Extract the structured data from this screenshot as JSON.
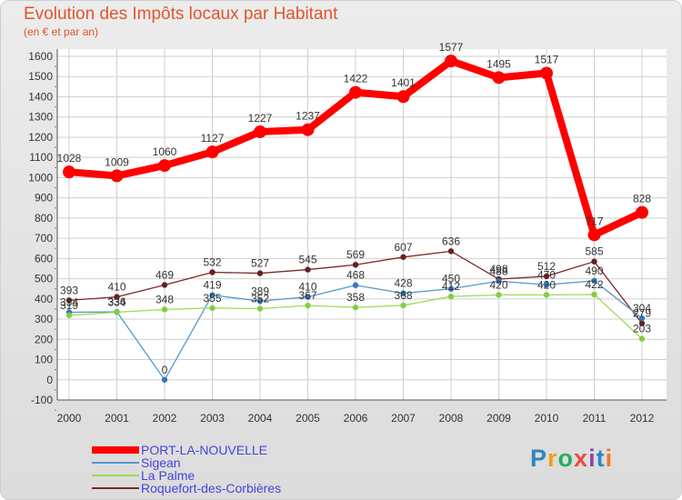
{
  "title": "Evolution des Impôts locaux par Habitant",
  "subtitle": "(en € et par an)",
  "logo": {
    "text": "Proxiti",
    "letter_colors": [
      "#2e86c1",
      "#f39c12",
      "#27ae60",
      "#e74c3c",
      "#8e44ad",
      "#2e86c1",
      "#e67e22"
    ]
  },
  "chart_data": {
    "type": "line",
    "title": "Evolution des Impôts locaux par Habitant",
    "subtitle": "(en € et par an)",
    "xlabel": "",
    "ylabel": "",
    "x": [
      "2000",
      "2001",
      "2002",
      "2003",
      "2004",
      "2005",
      "2006",
      "2007",
      "2008",
      "2009",
      "2010",
      "2011",
      "2012"
    ],
    "ylim": [
      -100,
      1600
    ],
    "yticks": [
      "-100",
      "0",
      "100",
      "200",
      "300",
      "400",
      "500",
      "600",
      "700",
      "800",
      "900",
      "1000",
      "1100",
      "1200",
      "1300",
      "1400",
      "1500",
      "1600"
    ],
    "grid": true,
    "legend_position": "bottom-left",
    "series": [
      {
        "name": "PORT-LA-NOUVELLE",
        "color": "#ff0000",
        "values": [
          1028,
          1009,
          1060,
          1127,
          1227,
          1237,
          1422,
          1401,
          1577,
          1495,
          1517,
          717,
          828
        ],
        "labels": [
          "1028",
          "1009",
          "1060",
          "1127",
          "1227",
          "1237",
          "1422",
          "1401",
          "1577",
          "1495",
          "1517",
          "717",
          "828"
        ]
      },
      {
        "name": "Sigean",
        "color": "#5599cc",
        "marker": "#3377bb",
        "values": [
          334,
          336,
          0,
          419,
          389,
          410,
          468,
          428,
          450,
          488,
          470,
          490,
          304
        ],
        "labels": [
          "334",
          "336",
          "0",
          "419",
          "389",
          "410",
          "468",
          "428",
          "450",
          "488",
          "470",
          "490",
          "304"
        ]
      },
      {
        "name": "La Palme",
        "color": "#99dd55",
        "marker": "#88cc44",
        "values": [
          319,
          334,
          348,
          355,
          352,
          367,
          358,
          368,
          412,
          420,
          420,
          422,
          203
        ],
        "labels": [
          "319",
          "334",
          "348",
          "355",
          "352",
          "367",
          "358",
          "368",
          "412",
          "420",
          "420",
          "422",
          "203"
        ]
      },
      {
        "name": "Roquefort-des-Corbières",
        "color": "#7a2a2a",
        "marker": "#6a1f1f",
        "values": [
          393,
          410,
          469,
          532,
          527,
          545,
          569,
          607,
          636,
          498,
          512,
          585,
          279
        ],
        "labels": [
          "393",
          "410",
          "469",
          "532",
          "527",
          "545",
          "569",
          "607",
          "636",
          "498",
          "512",
          "585",
          "279"
        ]
      }
    ]
  }
}
